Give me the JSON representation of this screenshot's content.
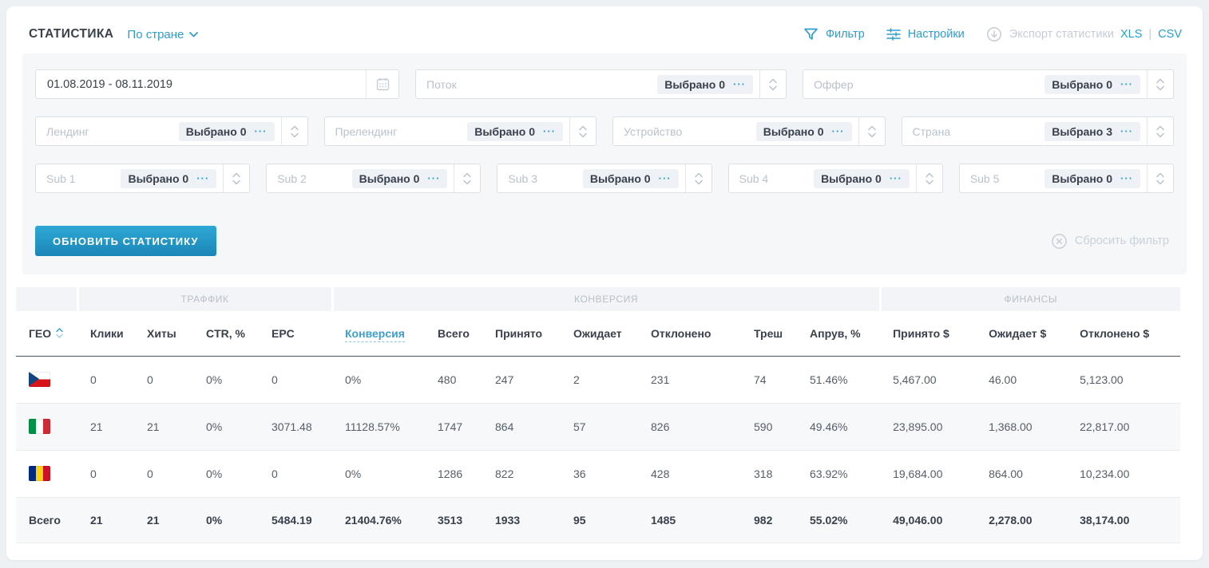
{
  "labels": {
    "dots": "···"
  },
  "header": {
    "title": "СТАТИСТИКА",
    "group_by": "По стране",
    "filter": "Фильтр",
    "settings": "Настройки",
    "export": "Экспорт статистики",
    "xls": "XLS",
    "divider": "|",
    "csv": "CSV"
  },
  "filters": {
    "date_range": "01.08.2019 - 08.11.2019",
    "fields_row1": [
      {
        "placeholder": "Поток",
        "selected": "Выбрано 0"
      },
      {
        "placeholder": "Оффер",
        "selected": "Выбрано 0"
      }
    ],
    "fields_row2": [
      {
        "placeholder": "Лендинг",
        "selected": "Выбрано 0"
      },
      {
        "placeholder": "Прелендинг",
        "selected": "Выбрано 0"
      },
      {
        "placeholder": "Устройство",
        "selected": "Выбрано 0"
      },
      {
        "placeholder": "Страна",
        "selected": "Выбрано 3"
      }
    ],
    "fields_row3": [
      {
        "placeholder": "Sub 1",
        "selected": "Выбрано 0"
      },
      {
        "placeholder": "Sub 2",
        "selected": "Выбрано 0"
      },
      {
        "placeholder": "Sub 3",
        "selected": "Выбрано 0"
      },
      {
        "placeholder": "Sub 4",
        "selected": "Выбрано 0"
      },
      {
        "placeholder": "Sub 5",
        "selected": "Выбрано 0"
      }
    ],
    "update_button": "ОБНОВИТЬ СТАТИСТИКУ",
    "reset_button": "Сбросить фильтр"
  },
  "table": {
    "groups": [
      {
        "label": "",
        "span": 1
      },
      {
        "label": "ТРАФФИК",
        "span": 4
      },
      {
        "label": "КОНВЕРСИЯ",
        "span": 7
      },
      {
        "label": "ФИНАНСЫ",
        "span": 3
      }
    ],
    "columns": [
      "ГЕО",
      "Клики",
      "Хиты",
      "CTR, %",
      "EPC",
      "Конверсия",
      "Всего",
      "Принято",
      "Ожидает",
      "Отклонено",
      "Треш",
      "Апрув, %",
      "Принято $",
      "Ожидает $",
      "Отклонено $"
    ],
    "column_keys": [
      "geo",
      "clicks",
      "hits",
      "ctr",
      "epc",
      "conversion",
      "total",
      "accepted",
      "pending",
      "declined",
      "trash",
      "approve-rate",
      "accepted-usd",
      "pending-usd",
      "declined-usd"
    ],
    "link_columns": [
      6,
      7,
      8
    ],
    "rows": [
      {
        "country": "czech-republic",
        "flag": "cz",
        "values": [
          "0",
          "0",
          "0%",
          "0",
          "0%",
          "480",
          "247",
          "2",
          "231",
          "74",
          "51.46%",
          "5,467.00",
          "46.00",
          "5,123.00"
        ]
      },
      {
        "country": "italy",
        "flag": "it",
        "values": [
          "21",
          "21",
          "0%",
          "3071.48",
          "11128.57%",
          "1747",
          "864",
          "57",
          "826",
          "590",
          "49.46%",
          "23,895.00",
          "1,368.00",
          "22,817.00"
        ]
      },
      {
        "country": "romania",
        "flag": "ro",
        "values": [
          "0",
          "0",
          "0%",
          "0",
          "0%",
          "1286",
          "822",
          "36",
          "428",
          "318",
          "63.92%",
          "19,684.00",
          "864.00",
          "10,234.00"
        ]
      }
    ],
    "total": {
      "label": "Всего",
      "values": [
        "21",
        "21",
        "0%",
        "5484.19",
        "21404.76%",
        "3513",
        "1933",
        "95",
        "1485",
        "982",
        "55.02%",
        "49,046.00",
        "2,278.00",
        "38,174.00"
      ]
    }
  },
  "colors": {
    "accent": "#2b9fd0",
    "link_value": "#66b3d8",
    "button": "#1f8cba"
  }
}
